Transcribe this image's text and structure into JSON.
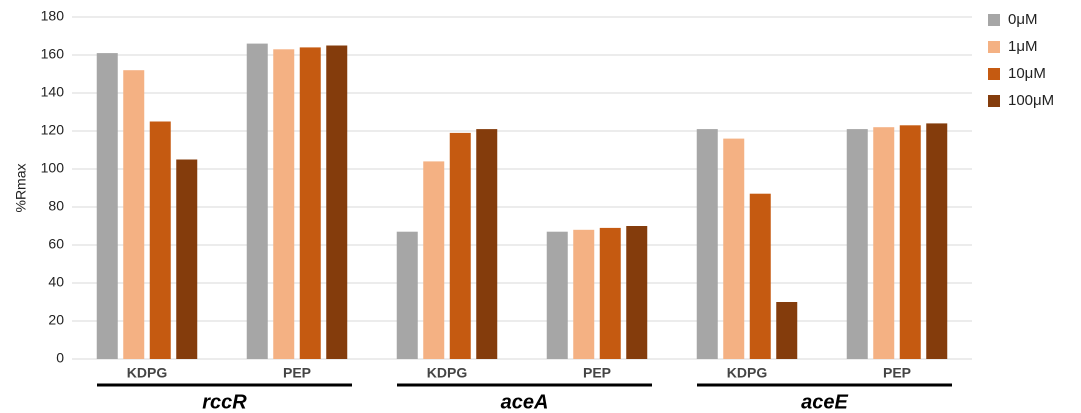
{
  "chart_data": {
    "type": "bar",
    "y_label": "%Rmax",
    "categories": [
      "KDPG",
      "PEP",
      "KDPG",
      "PEP",
      "KDPG",
      "PEP"
    ],
    "groups": [
      "rccR",
      "aceA",
      "aceE"
    ],
    "series": [
      {
        "name": "0μM",
        "color": "#a6a6a6",
        "values": [
          161,
          166,
          67,
          67,
          121,
          121
        ]
      },
      {
        "name": "1μM",
        "color": "#f4b183",
        "values": [
          152,
          163,
          104,
          68,
          116,
          122
        ]
      },
      {
        "name": "10μM",
        "color": "#c55a11",
        "values": [
          125,
          164,
          119,
          69,
          87,
          123
        ]
      },
      {
        "name": "100μM",
        "color": "#843c0c",
        "values": [
          105,
          165,
          121,
          70,
          30,
          124
        ]
      }
    ],
    "ylim": [
      0,
      180
    ],
    "yticks": [
      0,
      20,
      40,
      60,
      80,
      100,
      120,
      140,
      160,
      180
    ],
    "grid": true
  }
}
